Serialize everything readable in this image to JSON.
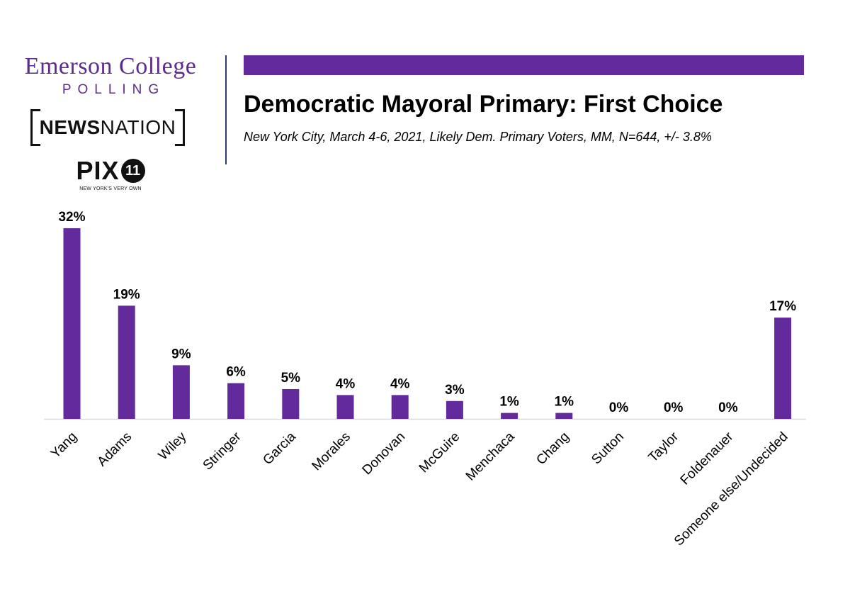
{
  "logos": {
    "emerson_college": "Emerson College",
    "emerson_polling": "POLLING",
    "newsnation_news": "NEWS",
    "newsnation_nation": "NATION",
    "pix_text": "PIX",
    "pix_number": "11",
    "pix_tagline": "NEW YORK'S VERY OWN"
  },
  "colors": {
    "bar": "#622a9b",
    "accent": "#622a9b",
    "axis": "#d9d9d9"
  },
  "chart_data": {
    "type": "bar",
    "title": "Democratic Mayoral Primary: First Choice",
    "subtitle": "New York City, March 4-6, 2021, Likely Dem. Primary Voters, MM, N=644, +/- 3.8%",
    "categories": [
      "Yang",
      "Adams",
      "Wiley",
      "Stringer",
      "Garcia",
      "Morales",
      "Donovan",
      "McGuire",
      "Menchaca",
      "Chang",
      "Sutton",
      "Taylor",
      "Foldenauer",
      "Someone else/Undecided"
    ],
    "values": [
      32,
      19,
      9,
      6,
      5,
      4,
      4,
      3,
      1,
      1,
      0,
      0,
      0,
      17
    ],
    "value_labels": [
      "32%",
      "19%",
      "9%",
      "6%",
      "5%",
      "4%",
      "4%",
      "3%",
      "1%",
      "1%",
      "0%",
      "0%",
      "0%",
      "17%"
    ],
    "unit": "%",
    "ylim": [
      0,
      32
    ],
    "grid": false,
    "legend": "none"
  }
}
